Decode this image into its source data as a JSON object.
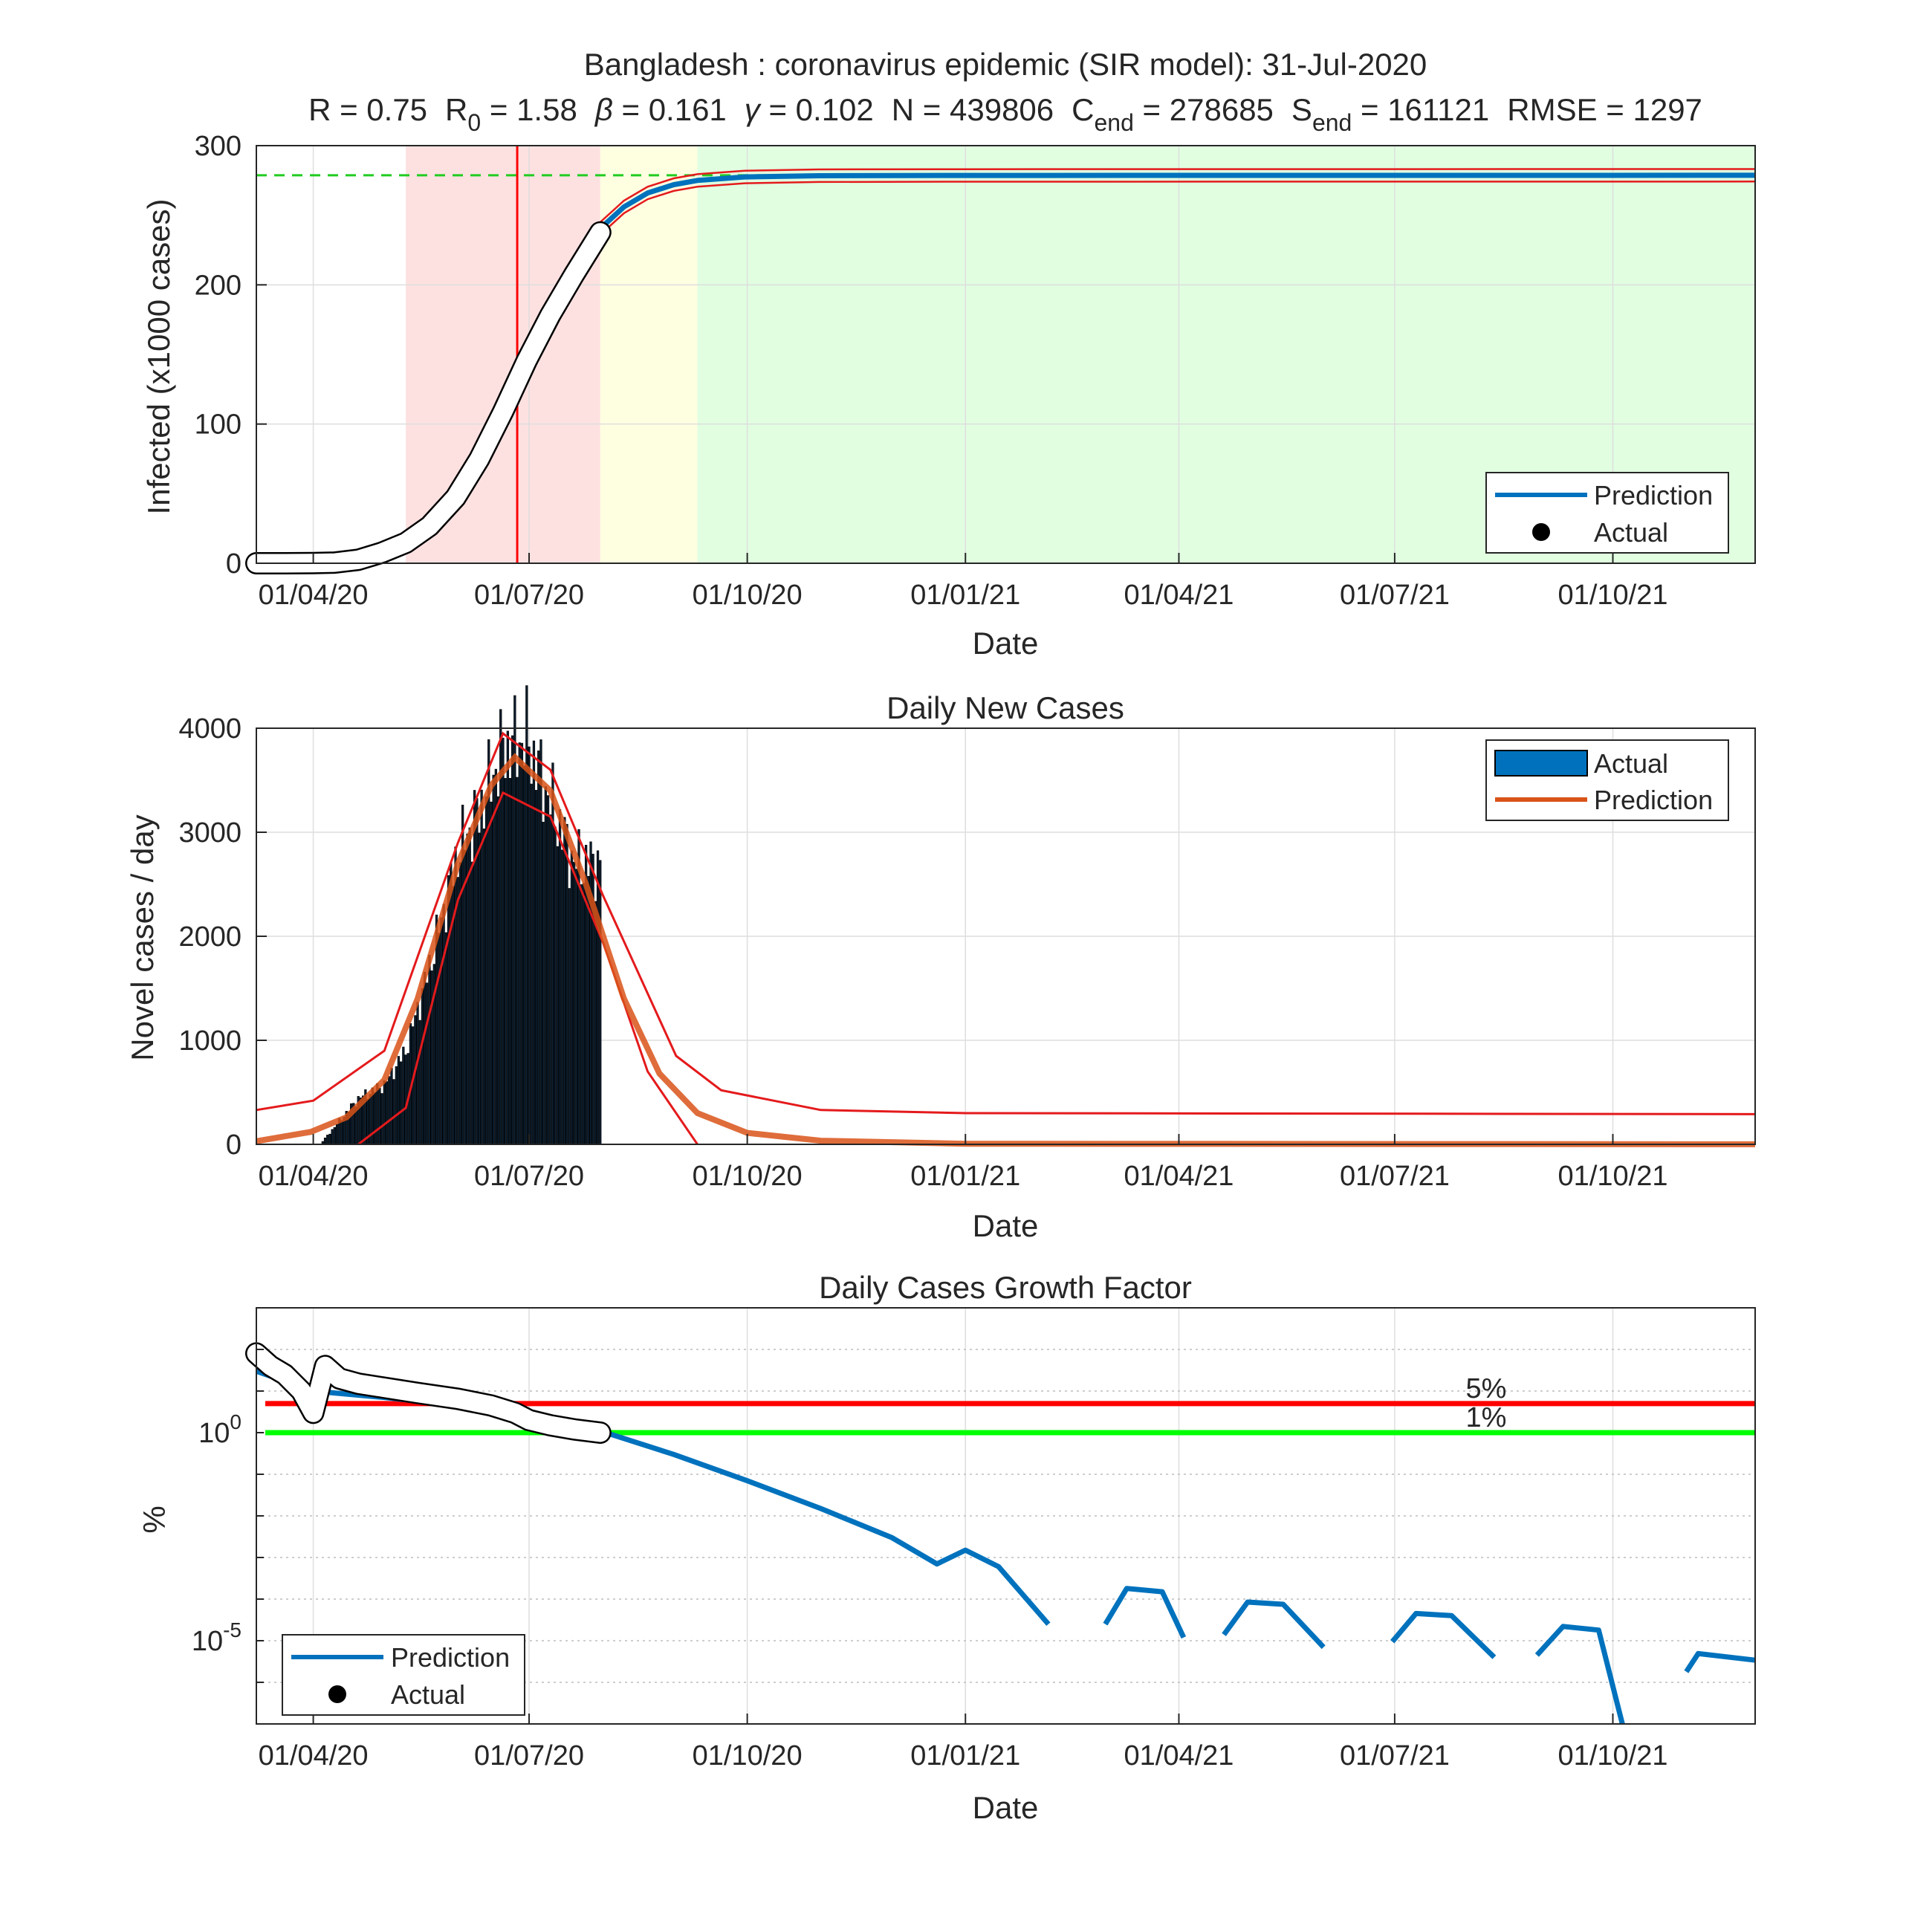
{
  "figure": {
    "title_line1": "Bangladesh : coronavirus epidemic (SIR model): 31-Jul-2020",
    "params": [
      {
        "label": "R",
        "sub": "",
        "value": "0.75"
      },
      {
        "label": "R",
        "sub": "0",
        "value": "1.58"
      },
      {
        "label": "β",
        "sub": "",
        "value": "0.161"
      },
      {
        "label": "γ",
        "sub": "",
        "value": "0.102"
      },
      {
        "label": "N",
        "sub": "",
        "value": "439806"
      },
      {
        "label": "C",
        "sub": "end",
        "value": "278685"
      },
      {
        "label": "S",
        "sub": "end",
        "value": "161121"
      },
      {
        "label": "RMSE",
        "sub": "",
        "value": "1297"
      }
    ]
  },
  "colors": {
    "prediction_blue": "#0072BD",
    "prediction_orange": "#D95319",
    "band_red": "#E41A1C",
    "phase_red": "#FDE1E1",
    "phase_yellow": "#FEFEE1",
    "phase_green": "#E1FEE1",
    "capacity_dash": "#22CC22",
    "threshold_red": "#FF0000",
    "threshold_green": "#00FF00",
    "bars": "#0B1C2C"
  },
  "date_ticks": [
    "01/04/20",
    "01/07/20",
    "01/10/20",
    "01/01/21",
    "01/04/21",
    "01/07/21",
    "01/10/21"
  ],
  "chart_data": [
    {
      "type": "line",
      "panel": "cumulative",
      "xlabel": "Date",
      "ylabel": "Infected (x1000 cases)",
      "ylim": [
        0,
        300
      ],
      "yticks": [
        "0",
        "100",
        "200",
        "300"
      ],
      "xlim": [
        "2020-03-08",
        "2021-11-30"
      ],
      "grid": true,
      "legend": {
        "position": "bottom-right",
        "entries": [
          "Prediction",
          "Actual"
        ]
      },
      "phases": [
        {
          "from": "2020-05-10",
          "to": "2020-07-31",
          "color": "pink"
        },
        {
          "from": "2020-07-31",
          "to": "2020-09-10",
          "color": "yellow"
        },
        {
          "from": "2020-09-10",
          "to": "2021-11-30",
          "color": "green"
        }
      ],
      "peak_date": "2020-06-26",
      "capacity_k": 278.685,
      "actual": {
        "x": [
          "2020-03-08",
          "2020-03-20",
          "2020-04-01",
          "2020-04-10",
          "2020-04-20",
          "2020-04-30",
          "2020-05-10",
          "2020-05-20",
          "2020-05-31",
          "2020-06-10",
          "2020-06-20",
          "2020-06-30",
          "2020-07-10",
          "2020-07-20",
          "2020-07-31"
        ],
        "y": [
          0.0,
          0.0,
          0.1,
          0.5,
          2.5,
          7.7,
          14.7,
          26.7,
          47.2,
          74.9,
          108.8,
          145.5,
          178.4,
          207.5,
          237.7
        ]
      },
      "prediction": {
        "x": [
          "2020-07-31",
          "2020-08-10",
          "2020-08-20",
          "2020-08-31",
          "2020-09-10",
          "2020-09-30",
          "2020-10-31",
          "2020-12-31",
          "2021-11-30"
        ],
        "y": [
          240.5,
          256.0,
          266.0,
          272.0,
          275.0,
          277.5,
          278.4,
          278.6,
          278.7
        ],
        "band_offset_k": 4.5
      }
    },
    {
      "type": "bar",
      "panel": "daily",
      "title": "Daily New Cases",
      "xlabel": "Date",
      "ylabel": "Novel cases / day",
      "ylim": [
        0,
        4000
      ],
      "yticks": [
        "0",
        "1000",
        "2000",
        "3000",
        "4000"
      ],
      "xlim": [
        "2020-03-08",
        "2021-11-30"
      ],
      "grid": true,
      "legend": {
        "position": "top-right",
        "entries": [
          "Actual",
          "Prediction"
        ]
      },
      "actual_bars": {
        "x": [
          "2020-04-05",
          "2020-04-20",
          "2020-05-01",
          "2020-05-10",
          "2020-05-20",
          "2020-06-01",
          "2020-06-10",
          "2020-06-20",
          "2020-06-30",
          "2020-07-10",
          "2020-07-20",
          "2020-07-31"
        ],
        "y": [
          30,
          440,
          570,
          900,
          1700,
          2800,
          3200,
          3800,
          3900,
          3300,
          2700,
          2700
        ]
      },
      "prediction": {
        "x": [
          "2020-03-08",
          "2020-03-31",
          "2020-04-15",
          "2020-05-01",
          "2020-05-15",
          "2020-06-01",
          "2020-06-15",
          "2020-06-25",
          "2020-07-10",
          "2020-07-25",
          "2020-08-10",
          "2020-08-25",
          "2020-09-10",
          "2020-10-01",
          "2020-11-01",
          "2021-01-01",
          "2021-11-30"
        ],
        "y": [
          30,
          120,
          260,
          620,
          1400,
          2700,
          3450,
          3720,
          3400,
          2500,
          1400,
          680,
          300,
          110,
          35,
          6,
          1
        ]
      },
      "upper_band": {
        "x": [
          "2020-03-08",
          "2020-04-01",
          "2020-05-01",
          "2020-06-01",
          "2020-06-20",
          "2020-07-10",
          "2020-08-01",
          "2020-09-01",
          "2020-09-20",
          "2020-11-01",
          "2021-01-01",
          "2021-11-30"
        ],
        "y": [
          330,
          420,
          900,
          2900,
          3950,
          3600,
          2400,
          850,
          520,
          330,
          300,
          290
        ]
      },
      "lower_band": {
        "x": [
          "2020-04-20",
          "2020-05-10",
          "2020-06-01",
          "2020-06-20",
          "2020-07-10",
          "2020-08-01",
          "2020-08-20",
          "2020-09-10"
        ],
        "y": [
          0,
          350,
          2350,
          3380,
          3150,
          1950,
          700,
          0
        ]
      }
    },
    {
      "type": "line",
      "panel": "growth",
      "title": "Daily Cases Growth Factor",
      "xlabel": "Date",
      "ylabel": "%",
      "yscale": "log",
      "ylim": [
        1e-07,
        1000
      ],
      "xlim": [
        "2020-03-08",
        "2021-11-30"
      ],
      "grid": true,
      "legend": {
        "position": "bottom-left",
        "entries": [
          "Prediction",
          "Actual"
        ]
      },
      "thresholds": [
        {
          "label": "5%",
          "value": 5
        },
        {
          "label": "1%",
          "value": 1
        }
      ],
      "actual": {
        "x": [
          "2020-03-08",
          "2020-03-14",
          "2020-03-20",
          "2020-03-27",
          "2020-04-01",
          "2020-04-06",
          "2020-04-12",
          "2020-04-20",
          "2020-05-01",
          "2020-05-15",
          "2020-06-01",
          "2020-06-15",
          "2020-06-25",
          "2020-07-01",
          "2020-07-10",
          "2020-07-20",
          "2020-07-31"
        ],
        "y": [
          80,
          40,
          25,
          10,
          3,
          40,
          20,
          15,
          12,
          9,
          6.5,
          4.5,
          3,
          2,
          1.5,
          1.2,
          1.0
        ]
      },
      "prediction_segments": [
        {
          "x": [
            "2020-03-08",
            "2020-04-01",
            "2020-05-01",
            "2020-06-01",
            "2020-07-01",
            "2020-07-31",
            "2020-08-31",
            "2020-10-01",
            "2020-11-01",
            "2020-12-01",
            "2020-12-20",
            "2021-01-01",
            "2021-01-15",
            "2021-02-05"
          ],
          "y": [
            30,
            10,
            7,
            4.5,
            2.2,
            1.1,
            0.3,
            0.07,
            0.015,
            0.003,
            0.0007,
            0.0015,
            0.0006,
            2.5e-05
          ]
        },
        {
          "x": [
            "2021-03-01",
            "2021-03-10",
            "2021-03-25",
            "2021-04-03"
          ],
          "y": [
            2.5e-05,
            0.00018,
            0.00015,
            1.2e-05
          ]
        },
        {
          "x": [
            "2021-04-20",
            "2021-04-30",
            "2021-05-15",
            "2021-06-01"
          ],
          "y": [
            1.4e-05,
            8.5e-05,
            7.5e-05,
            7e-06
          ]
        },
        {
          "x": [
            "2021-06-30",
            "2021-07-10",
            "2021-07-25",
            "2021-08-12"
          ],
          "y": [
            9.5e-06,
            4.5e-05,
            4e-05,
            4e-06
          ]
        },
        {
          "x": [
            "2021-08-30",
            "2021-09-10",
            "2021-09-25",
            "2021-10-05"
          ],
          "y": [
            4.5e-06,
            2.2e-05,
            1.8e-05,
            1e-07
          ]
        },
        {
          "x": [
            "2021-11-01",
            "2021-11-06",
            "2021-11-30"
          ],
          "y": [
            1.8e-06,
            4.9e-06,
            3.4e-06
          ]
        }
      ]
    }
  ],
  "legend_labels": {
    "prediction": "Prediction",
    "actual": "Actual"
  }
}
